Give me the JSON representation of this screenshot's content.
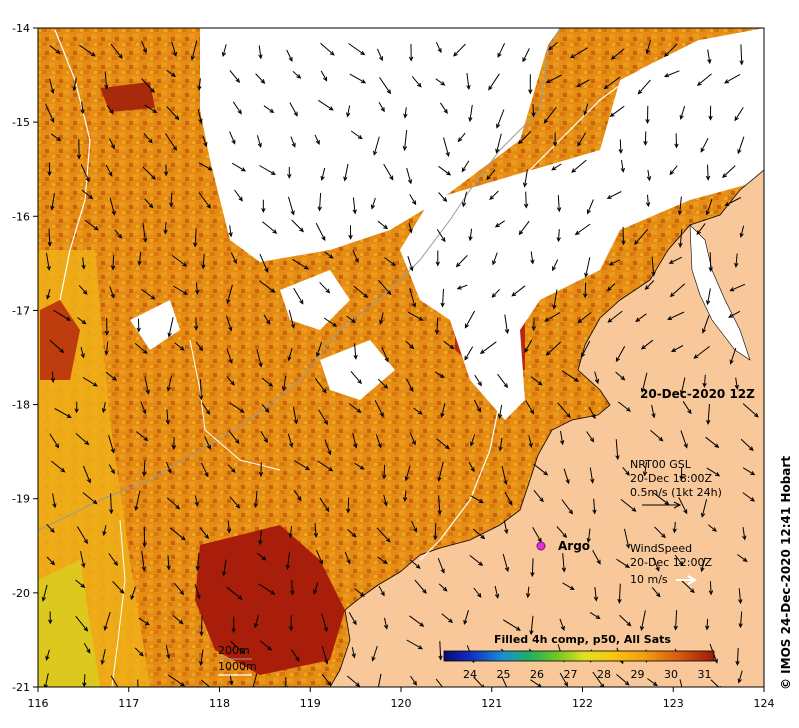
{
  "map": {
    "timestamp": "20-Dec-2020 12Z",
    "credit": "© IMOS 24-Dec-2020 12:41 Hobart",
    "x_ticks": [
      "116",
      "117",
      "118",
      "119",
      "120",
      "121",
      "122",
      "123",
      "124"
    ],
    "y_ticks": [
      "-14",
      "-15",
      "-16",
      "-17",
      "-18",
      "-19",
      "-20",
      "-21"
    ],
    "current_legend": {
      "line1": "NRT00 GSL",
      "line2": "20-Dec 18:00Z",
      "line3": "0.5m/s (1kt 24h)"
    },
    "wind_legend": {
      "line1": "WindSpeed",
      "line2": "20-Dec 12:00Z",
      "line3": "10 m/s"
    },
    "argo_label": "Argo",
    "depth_legend": {
      "line1": "200m",
      "line2": "1000m"
    },
    "colorbar": {
      "title": "Filled 4h comp, p50, All Sats",
      "labels": [
        "24",
        "25",
        "26",
        "27",
        "28",
        "29",
        "30",
        "31"
      ]
    },
    "colors": {
      "land": "#f8c89a",
      "cloud": "#ffffff",
      "sst_warm": "#e08a14",
      "sst_hot": "#b02a0a",
      "sst_mid": "#f0a818",
      "argo": "#e030e0"
    }
  }
}
